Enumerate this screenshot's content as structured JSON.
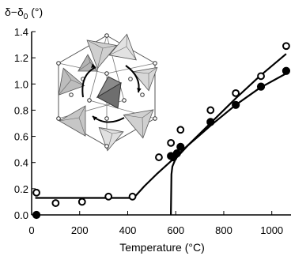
{
  "chart_data": {
    "type": "scatter",
    "title": "",
    "xlabel": "Temperature (°C)",
    "ylabel": "δ−δ",
    "ylabel_sub": "0",
    "ylabel_unit": " (°)",
    "xlim": [
      0,
      1080
    ],
    "ylim": [
      0,
      1.4
    ],
    "x_ticks": [
      0,
      200,
      400,
      600,
      800,
      1000
    ],
    "y_ticks": [
      0.0,
      0.2,
      0.4,
      0.6,
      0.8,
      1.0,
      1.2,
      1.4
    ],
    "y_tick_labels": [
      "0.0",
      "0.2",
      "0.4",
      "0.6",
      "0.8",
      "1.0",
      "1.2",
      "1.4"
    ],
    "grid": false,
    "series": [
      {
        "marker": "open-circle",
        "points": [
          [
            20,
            0.17
          ],
          [
            100,
            0.09
          ],
          [
            210,
            0.1
          ],
          [
            320,
            0.14
          ],
          [
            420,
            0.14
          ],
          [
            530,
            0.44
          ],
          [
            580,
            0.55
          ],
          [
            620,
            0.65
          ],
          [
            745,
            0.8
          ],
          [
            850,
            0.93
          ],
          [
            955,
            1.06
          ],
          [
            1060,
            1.29
          ]
        ]
      },
      {
        "marker": "filled-circle",
        "points": [
          [
            20,
            0.0
          ],
          [
            580,
            0.45
          ],
          [
            590,
            0.44
          ],
          [
            605,
            0.47
          ],
          [
            620,
            0.52
          ],
          [
            745,
            0.71
          ],
          [
            850,
            0.84
          ],
          [
            955,
            0.98
          ],
          [
            1060,
            1.1
          ]
        ]
      }
    ],
    "fit_lines": [
      {
        "points": [
          [
            15,
            0.13
          ],
          [
            425,
            0.13
          ],
          [
            470,
            0.22
          ],
          [
            520,
            0.31
          ],
          [
            580,
            0.41
          ],
          [
            650,
            0.53
          ],
          [
            750,
            0.71
          ],
          [
            850,
            0.89
          ],
          [
            950,
            1.06
          ],
          [
            1060,
            1.23
          ]
        ]
      },
      {
        "points": [
          [
            580,
            0.0
          ],
          [
            582,
            0.31
          ],
          [
            586,
            0.37
          ],
          [
            600,
            0.43
          ],
          [
            650,
            0.53
          ],
          [
            750,
            0.69
          ],
          [
            850,
            0.84
          ],
          [
            950,
            0.97
          ],
          [
            1060,
            1.08
          ]
        ]
      }
    ],
    "inset": "polyhedral framework diagram with curved rotation arrows"
  }
}
